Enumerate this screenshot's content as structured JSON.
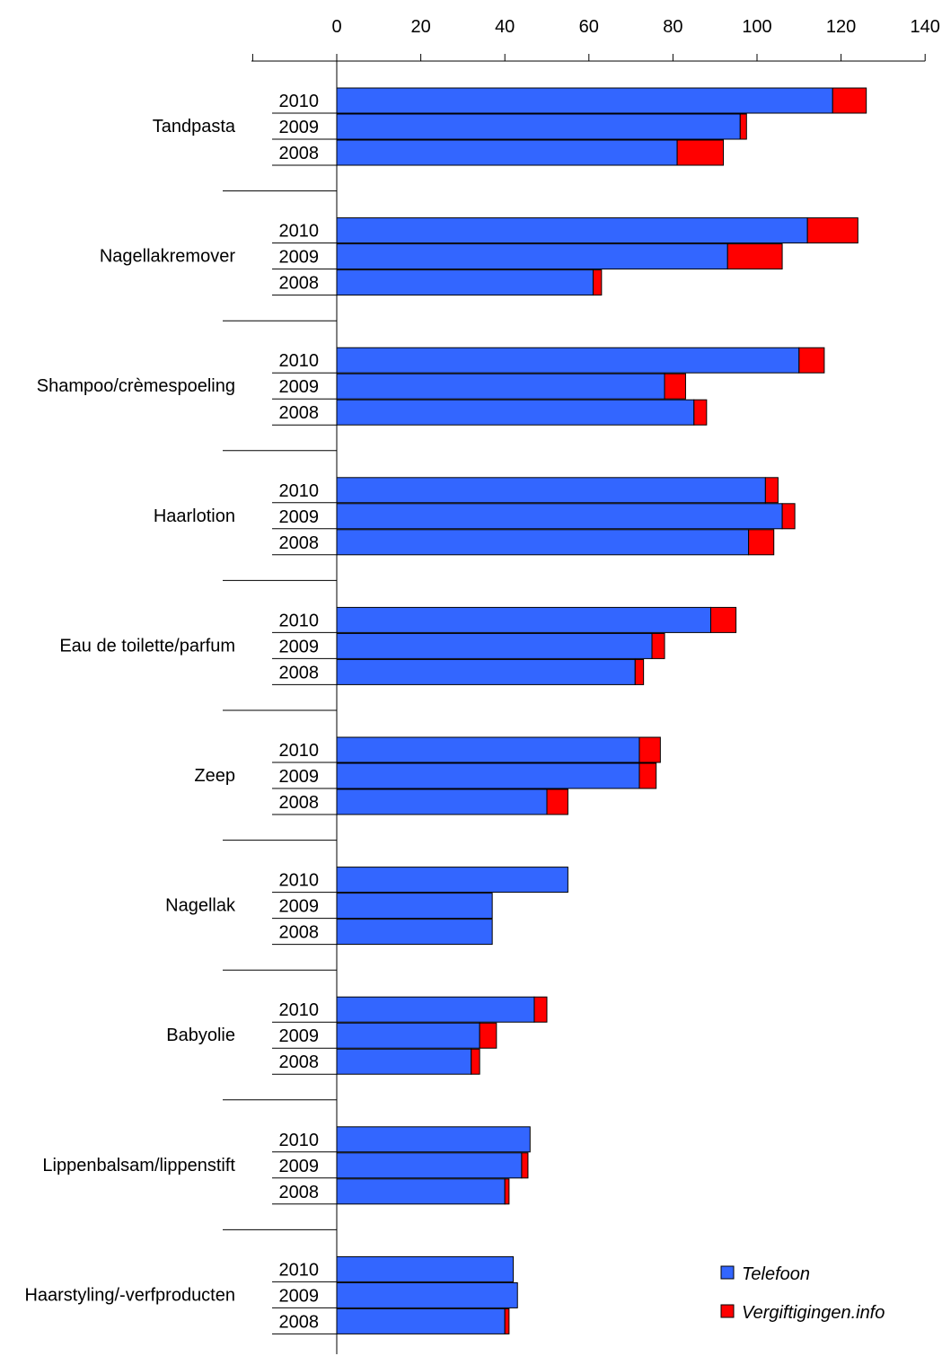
{
  "chart_data": {
    "type": "bar",
    "orientation": "horizontal",
    "stacked": true,
    "xlim": [
      0,
      140
    ],
    "xticks": [
      0,
      20,
      40,
      60,
      80,
      100,
      120,
      140
    ],
    "grid": false,
    "legend_position": "bottom-right",
    "colors": {
      "Telefoon": "#3366ff",
      "Vergiftigingen.info": "#ff0000"
    },
    "categories": [
      {
        "name": "Tandpasta",
        "years": [
          {
            "year": "2010",
            "telefoon": 118,
            "vergiftigingen": 8
          },
          {
            "year": "2009",
            "telefoon": 96,
            "vergiftigingen": 1.5
          },
          {
            "year": "2008",
            "telefoon": 81,
            "vergiftigingen": 11
          }
        ]
      },
      {
        "name": "Nagellakremover",
        "years": [
          {
            "year": "2010",
            "telefoon": 112,
            "vergiftigingen": 12
          },
          {
            "year": "2009",
            "telefoon": 93,
            "vergiftigingen": 13
          },
          {
            "year": "2008",
            "telefoon": 61,
            "vergiftigingen": 2
          }
        ]
      },
      {
        "name": "Shampoo/crèmespoeling",
        "years": [
          {
            "year": "2010",
            "telefoon": 110,
            "vergiftigingen": 6
          },
          {
            "year": "2009",
            "telefoon": 78,
            "vergiftigingen": 5
          },
          {
            "year": "2008",
            "telefoon": 85,
            "vergiftigingen": 3
          }
        ]
      },
      {
        "name": "Haarlotion",
        "years": [
          {
            "year": "2010",
            "telefoon": 102,
            "vergiftigingen": 3
          },
          {
            "year": "2009",
            "telefoon": 106,
            "vergiftigingen": 3
          },
          {
            "year": "2008",
            "telefoon": 98,
            "vergiftigingen": 6
          }
        ]
      },
      {
        "name": "Eau de toilette/parfum",
        "years": [
          {
            "year": "2010",
            "telefoon": 89,
            "vergiftigingen": 6
          },
          {
            "year": "2009",
            "telefoon": 75,
            "vergiftigingen": 3
          },
          {
            "year": "2008",
            "telefoon": 71,
            "vergiftigingen": 2
          }
        ]
      },
      {
        "name": "Zeep",
        "years": [
          {
            "year": "2010",
            "telefoon": 72,
            "vergiftigingen": 5
          },
          {
            "year": "2009",
            "telefoon": 72,
            "vergiftigingen": 4
          },
          {
            "year": "2008",
            "telefoon": 50,
            "vergiftigingen": 5
          }
        ]
      },
      {
        "name": "Nagellak",
        "years": [
          {
            "year": "2010",
            "telefoon": 55,
            "vergiftigingen": 0
          },
          {
            "year": "2009",
            "telefoon": 37,
            "vergiftigingen": 0
          },
          {
            "year": "2008",
            "telefoon": 37,
            "vergiftigingen": 0
          }
        ]
      },
      {
        "name": "Babyolie",
        "years": [
          {
            "year": "2010",
            "telefoon": 47,
            "vergiftigingen": 3
          },
          {
            "year": "2009",
            "telefoon": 34,
            "vergiftigingen": 4
          },
          {
            "year": "2008",
            "telefoon": 32,
            "vergiftigingen": 2
          }
        ]
      },
      {
        "name": "Lippenbalsam/lippenstift",
        "years": [
          {
            "year": "2010",
            "telefoon": 46,
            "vergiftigingen": 0
          },
          {
            "year": "2009",
            "telefoon": 44,
            "vergiftigingen": 1.5
          },
          {
            "year": "2008",
            "telefoon": 40,
            "vergiftigingen": 1
          }
        ]
      },
      {
        "name": "Haarstyling/-verfproducten",
        "years": [
          {
            "year": "2010",
            "telefoon": 42,
            "vergiftigingen": 0
          },
          {
            "year": "2009",
            "telefoon": 43,
            "vergiftigingen": 0
          },
          {
            "year": "2008",
            "telefoon": 40,
            "vergiftigingen": 1
          }
        ]
      }
    ],
    "legend": [
      {
        "key": "telefoon",
        "label": "Telefoon"
      },
      {
        "key": "vergiftigingen",
        "label": "Vergiftigingen.info"
      }
    ]
  }
}
